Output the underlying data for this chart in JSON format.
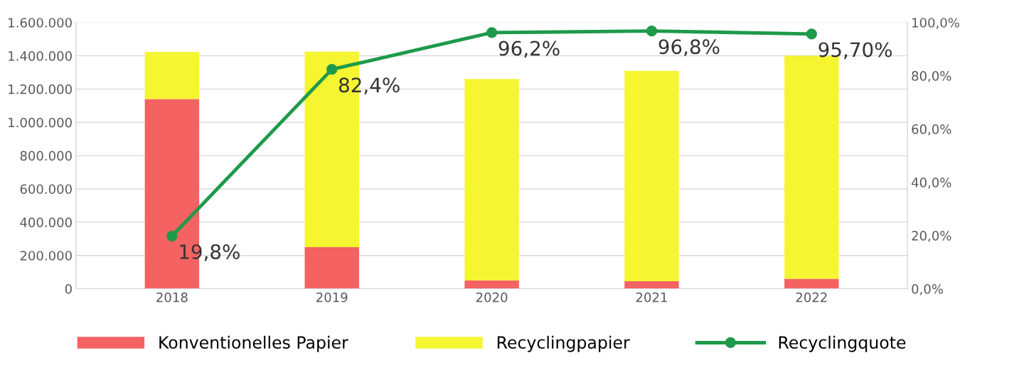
{
  "chart_data": {
    "type": "bar",
    "categories": [
      "2018",
      "2019",
      "2020",
      "2021",
      "2022"
    ],
    "stacked": true,
    "series": [
      {
        "name": "Konventionelles Papier",
        "color": "#f56262",
        "values": [
          1140000,
          250000,
          50000,
          45000,
          60000
        ]
      },
      {
        "name": "Recyclingpapier",
        "color": "#f5f532",
        "values": [
          284000,
          1175000,
          1210000,
          1265000,
          1340000
        ]
      },
      {
        "name": "Recyclingquote",
        "type": "line",
        "axis": "y2",
        "color": "#1e9a4a",
        "marker": "circle",
        "values": [
          19.8,
          82.4,
          96.2,
          96.8,
          95.7
        ],
        "value_labels": [
          "19,8%",
          "82,4%",
          "96,2%",
          "96,8%",
          "95,70%"
        ]
      }
    ],
    "ylim": [
      0,
      1600000
    ],
    "yticks": [
      {
        "value": 0,
        "label": "0"
      },
      {
        "value": 200000,
        "label": "200.000"
      },
      {
        "value": 400000,
        "label": "400.000"
      },
      {
        "value": 600000,
        "label": "600.000"
      },
      {
        "value": 800000,
        "label": "800.000"
      },
      {
        "value": 1000000,
        "label": "1.000.000"
      },
      {
        "value": 1200000,
        "label": "1.200.000"
      },
      {
        "value": 1400000,
        "label": "1.400.000"
      },
      {
        "value": 1600000,
        "label": "1.600.000"
      }
    ],
    "y2lim": [
      0,
      100
    ],
    "y2ticks": [
      {
        "value": 0,
        "label": "0,0%"
      },
      {
        "value": 20,
        "label": "20,0%"
      },
      {
        "value": 40,
        "label": "40,0%"
      },
      {
        "value": 60,
        "label": "60,0%"
      },
      {
        "value": 80,
        "label": "80,0%"
      },
      {
        "value": 100,
        "label": "100,0%"
      }
    ],
    "grid": "y",
    "legend": "bottom"
  }
}
